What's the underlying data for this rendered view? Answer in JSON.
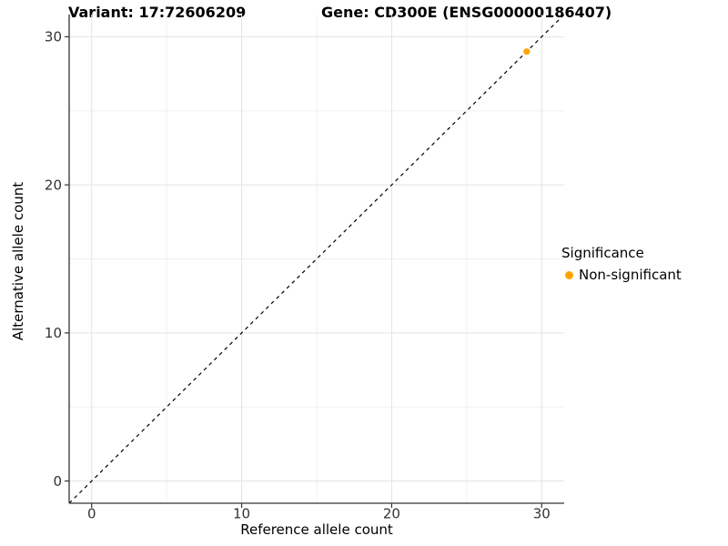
{
  "figure": {
    "title_left": "Variant: 17:72606209",
    "title_right": "Gene: CD300E (ENSG00000186407)"
  },
  "legend": {
    "title": "Significance",
    "position": "right",
    "items": [
      {
        "label": "Non-significant",
        "color": "#FFA500",
        "marker": "circle-icon"
      }
    ]
  },
  "chart_data": {
    "type": "scatter",
    "title": "Variant: 17:72606209   Gene: CD300E (ENSG00000186407)",
    "xlabel": "Reference allele count",
    "ylabel": "Alternative allele count",
    "xlim": [
      -1.5,
      31.5
    ],
    "ylim": [
      -1.5,
      31.5
    ],
    "x_major_ticks": [
      0,
      10,
      20,
      30
    ],
    "y_major_ticks": [
      0,
      10,
      20,
      30
    ],
    "x_minor_ticks": [
      5,
      15,
      25
    ],
    "y_minor_ticks": [
      5,
      15,
      25
    ],
    "grid": true,
    "legend_position": "right",
    "reference_line": {
      "name": "identity-line y=x",
      "style": "dashed",
      "from": [
        -1.5,
        -1.5
      ],
      "to": [
        31.5,
        31.5
      ],
      "color": "#000000"
    },
    "series": [
      {
        "name": "Non-significant",
        "color": "#FFA500",
        "points": [
          {
            "x": 29,
            "y": 29
          }
        ]
      }
    ],
    "style": {
      "background": "#FFFFFF",
      "major_grid_color": "#E3E3E3",
      "minor_grid_color": "#EFEFEF",
      "axis_line_color": "#333333",
      "tick_color": "#333333",
      "tick_label_color": "#333333",
      "point_color": "#FFA500"
    }
  }
}
